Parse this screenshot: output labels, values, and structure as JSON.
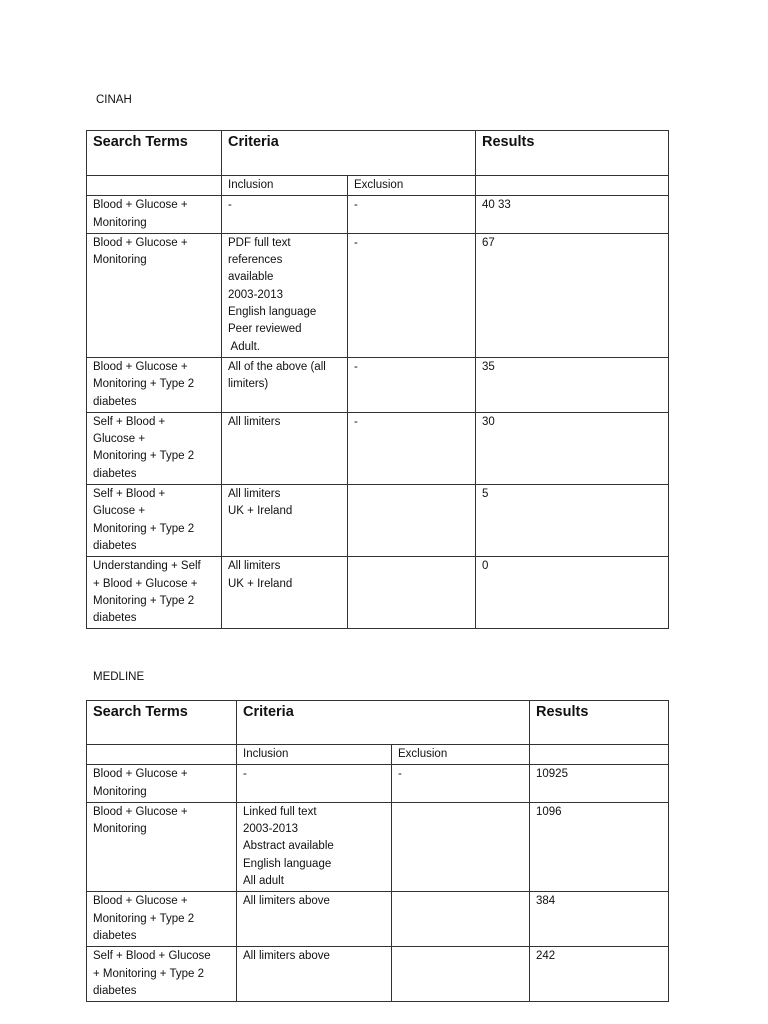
{
  "tables": [
    {
      "title": "CINAH",
      "headers": {
        "search_terms": "Search Terms",
        "criteria": "Criteria",
        "results": "Results",
        "inclusion": "Inclusion",
        "exclusion": "Exclusion"
      },
      "rows": [
        {
          "terms": "Blood + Glucose +\nMonitoring",
          "inclusion": "-",
          "exclusion": "-",
          "results": "40 33"
        },
        {
          "terms": "Blood + Glucose +\nMonitoring",
          "inclusion": "PDF full text\nreferences\navailable\n2003-2013\nEnglish language\nPeer reviewed\n Adult.",
          "exclusion": "-",
          "results": "67"
        },
        {
          "terms": "Blood + Glucose +\nMonitoring + Type 2\ndiabetes",
          "inclusion": "All of the above (all\nlimiters)",
          "exclusion": "-",
          "results": "35"
        },
        {
          "terms": "Self + Blood +\nGlucose +\nMonitoring + Type 2\ndiabetes",
          "inclusion": "All limiters",
          "exclusion": "-",
          "results": "30"
        },
        {
          "terms": "Self + Blood +\nGlucose +\nMonitoring + Type 2\ndiabetes",
          "inclusion": "All limiters\nUK + Ireland",
          "exclusion": "",
          "results": "5"
        },
        {
          "terms": "Understanding + Self\n+ Blood + Glucose +\nMonitoring + Type 2\ndiabetes",
          "inclusion": "All limiters\nUK + Ireland",
          "exclusion": "",
          "results": "0"
        }
      ]
    },
    {
      "title": "MEDLINE",
      "headers": {
        "search_terms": "Search Terms",
        "criteria": "Criteria",
        "results": "Results",
        "inclusion": "Inclusion",
        "exclusion": "Exclusion"
      },
      "rows": [
        {
          "terms": "Blood + Glucose +\nMonitoring",
          "inclusion": "-",
          "exclusion": "-",
          "results": "10925"
        },
        {
          "terms": "Blood + Glucose +\nMonitoring",
          "inclusion": "Linked full text\n2003-2013\nAbstract available\nEnglish language\nAll adult",
          "exclusion": "",
          "results": "1096"
        },
        {
          "terms": "Blood + Glucose +\nMonitoring + Type 2\ndiabetes",
          "inclusion": "All limiters above",
          "exclusion": "",
          "results": "384"
        },
        {
          "terms": "Self + Blood + Glucose\n+ Monitoring + Type 2\ndiabetes",
          "inclusion": "All limiters above",
          "exclusion": "",
          "results": "242"
        }
      ]
    }
  ]
}
